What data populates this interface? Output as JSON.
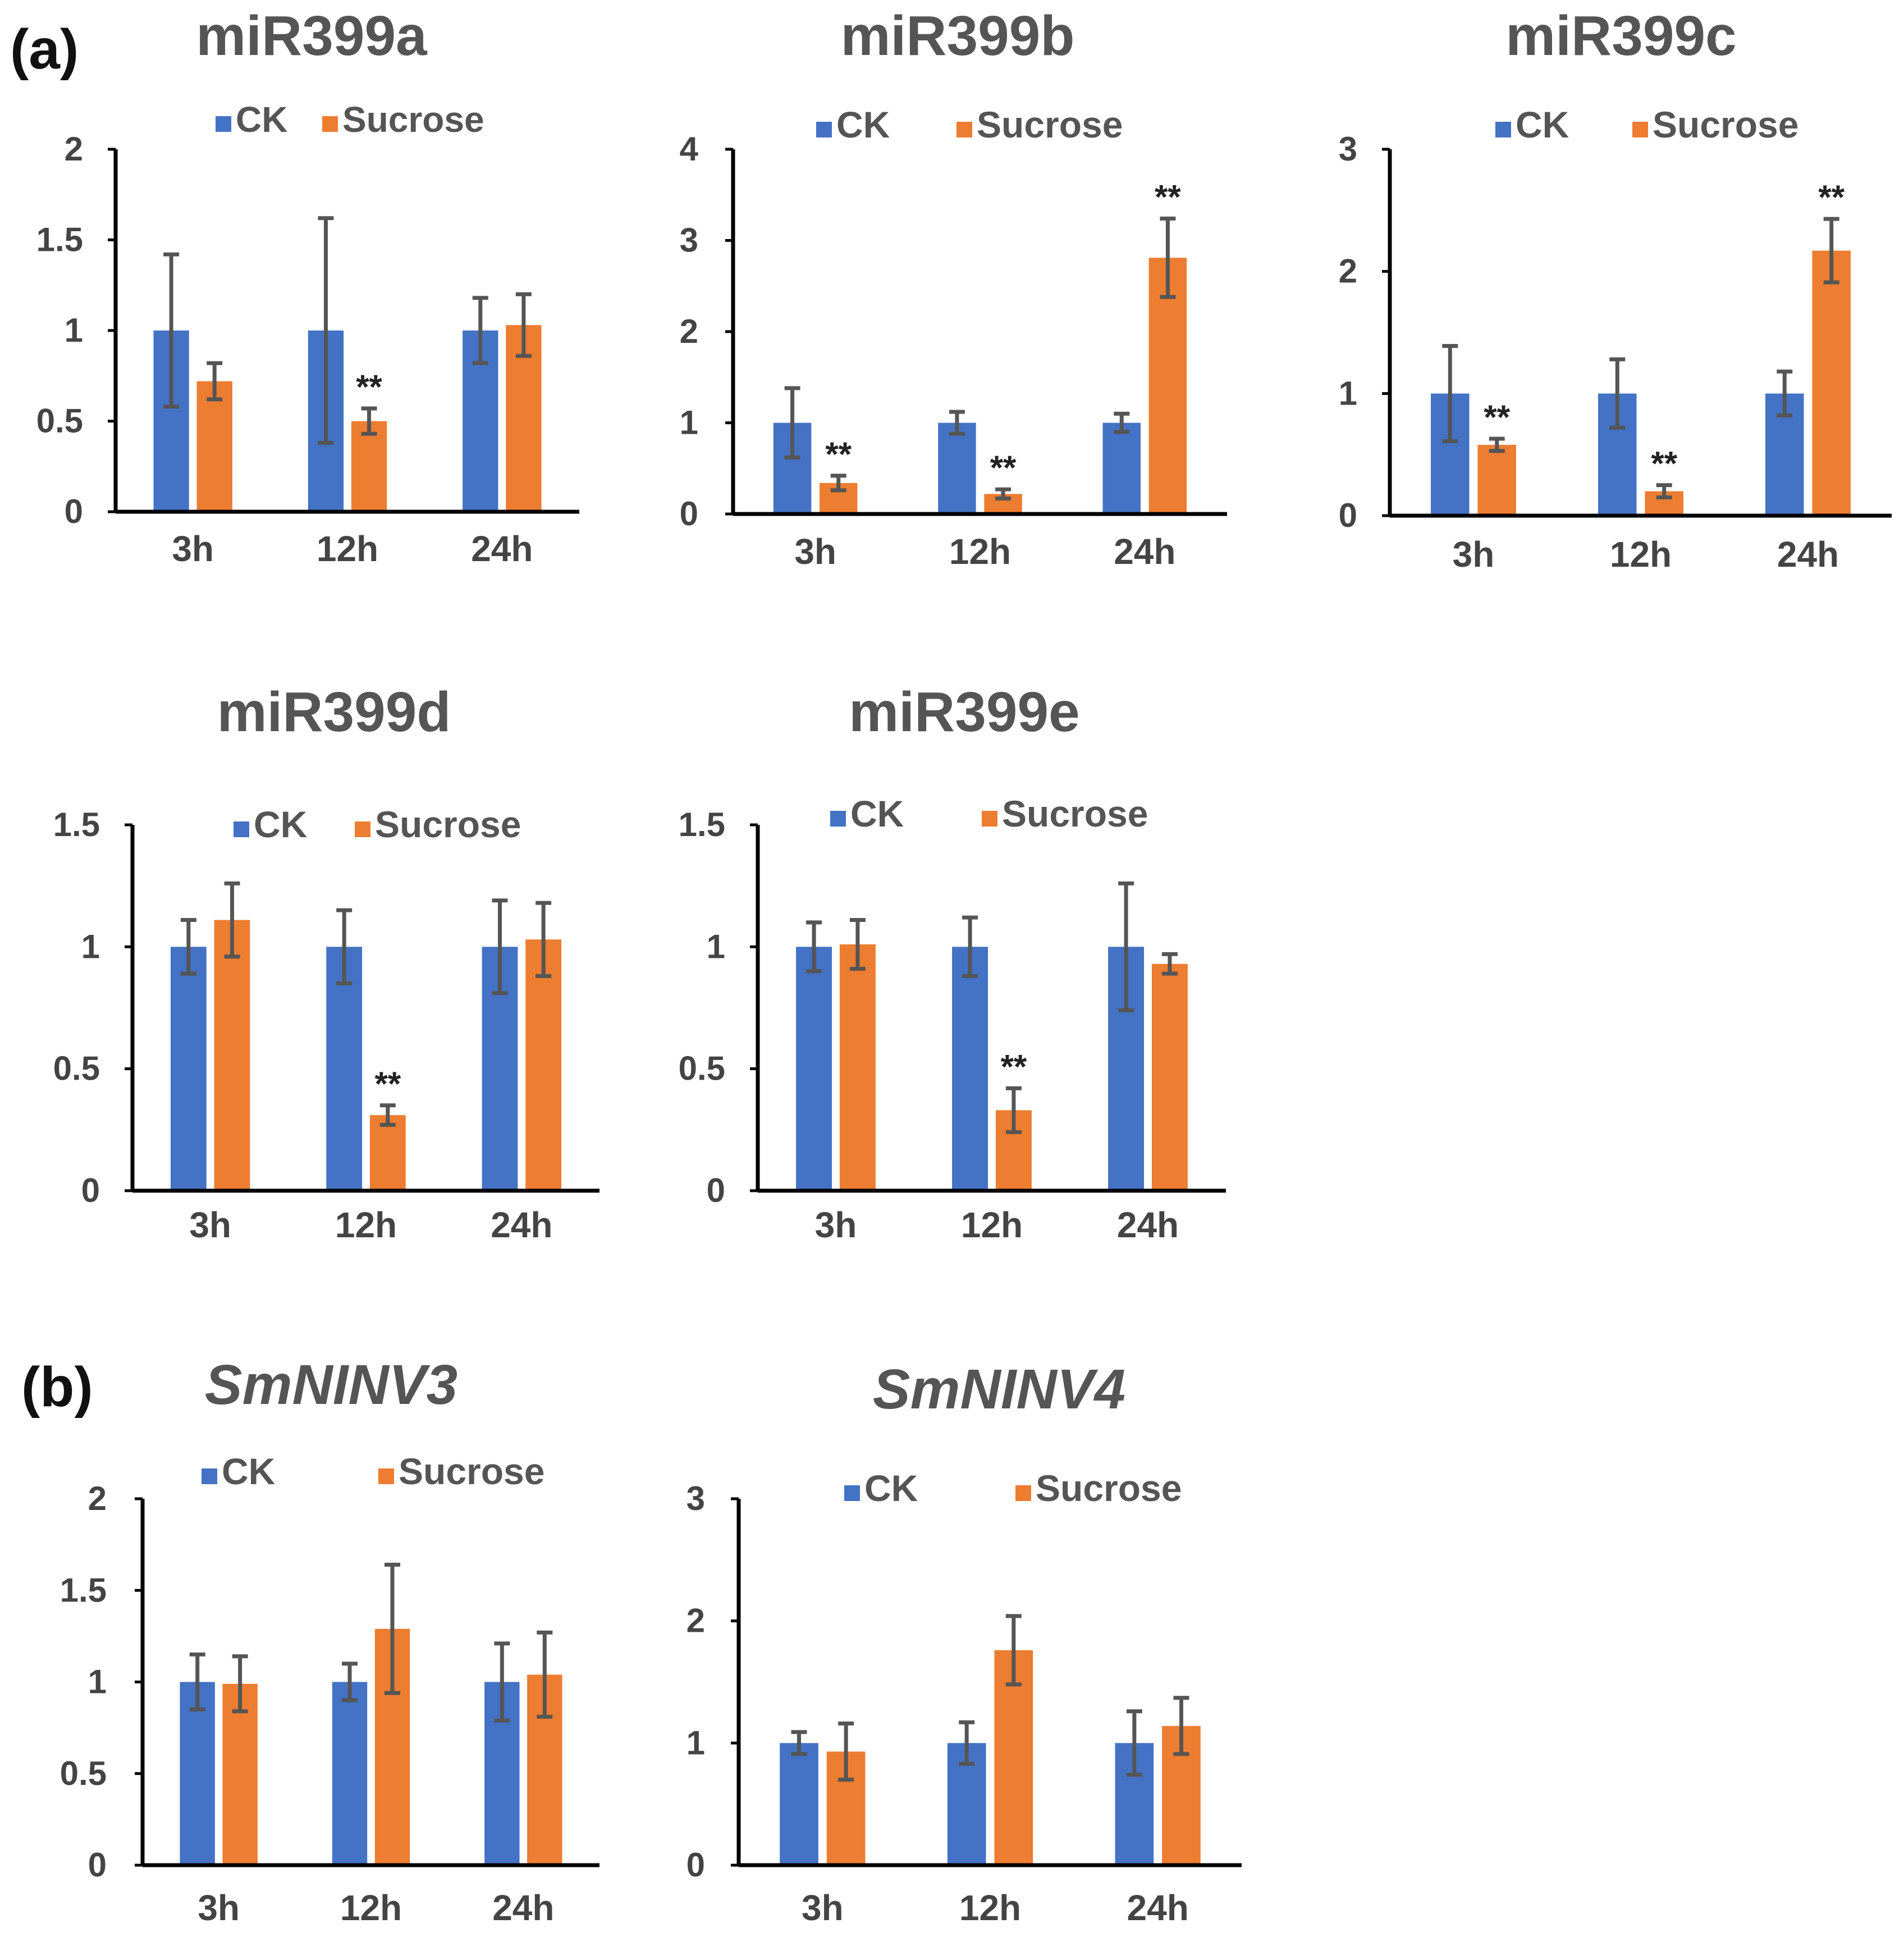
{
  "figure": {
    "panel_labels": [
      "(a)",
      "(b)"
    ],
    "colors": {
      "ck": "#4472C4",
      "sucrose": "#ED7D31",
      "axis": "#000000",
      "error": "#555555"
    }
  },
  "chart_data": [
    {
      "type": "bar",
      "panel": "(a)",
      "title": "miR399a",
      "title_italic": false,
      "categories": [
        "3h",
        "12h",
        "24h"
      ],
      "legend": [
        "CK",
        "Sucrose"
      ],
      "ylim": [
        0,
        2
      ],
      "yticks": [
        "0",
        "0.5",
        "1",
        "1.5",
        "2"
      ],
      "series": [
        {
          "name": "CK",
          "values": [
            1.0,
            1.0,
            1.0
          ],
          "errors": [
            0.42,
            0.62,
            0.18
          ]
        },
        {
          "name": "Sucrose",
          "values": [
            0.72,
            0.5,
            1.03
          ],
          "errors": [
            0.1,
            0.07,
            0.17
          ]
        }
      ],
      "significance": [
        {
          "series": "Sucrose",
          "category": "12h",
          "label": "**"
        }
      ]
    },
    {
      "type": "bar",
      "panel": "(a)",
      "title": "miR399b",
      "title_italic": false,
      "categories": [
        "3h",
        "12h",
        "24h"
      ],
      "legend": [
        "CK",
        "Sucrose"
      ],
      "ylim": [
        0,
        4
      ],
      "yticks": [
        "0",
        "1",
        "2",
        "3",
        "4"
      ],
      "series": [
        {
          "name": "CK",
          "values": [
            1.0,
            1.0,
            1.0
          ],
          "errors": [
            0.38,
            0.12,
            0.1
          ]
        },
        {
          "name": "Sucrose",
          "values": [
            0.34,
            0.22,
            2.81
          ],
          "errors": [
            0.08,
            0.05,
            0.43
          ]
        }
      ],
      "significance": [
        {
          "series": "Sucrose",
          "category": "3h",
          "label": "**"
        },
        {
          "series": "Sucrose",
          "category": "12h",
          "label": "**"
        },
        {
          "series": "Sucrose",
          "category": "24h",
          "label": "**"
        }
      ]
    },
    {
      "type": "bar",
      "panel": "(a)",
      "title": "miR399c",
      "title_italic": false,
      "categories": [
        "3h",
        "12h",
        "24h"
      ],
      "legend": [
        "CK",
        "Sucrose"
      ],
      "ylim": [
        0,
        3
      ],
      "yticks": [
        "0",
        "1",
        "2",
        "3"
      ],
      "series": [
        {
          "name": "CK",
          "values": [
            1.0,
            1.0,
            1.0
          ],
          "errors": [
            0.39,
            0.28,
            0.18
          ]
        },
        {
          "name": "Sucrose",
          "values": [
            0.58,
            0.2,
            2.17
          ],
          "errors": [
            0.05,
            0.05,
            0.26
          ]
        }
      ],
      "significance": [
        {
          "series": "Sucrose",
          "category": "3h",
          "label": "**"
        },
        {
          "series": "Sucrose",
          "category": "12h",
          "label": "**"
        },
        {
          "series": "Sucrose",
          "category": "24h",
          "label": "**"
        }
      ]
    },
    {
      "type": "bar",
      "panel": "(a)",
      "title": "miR399d",
      "title_italic": false,
      "categories": [
        "3h",
        "12h",
        "24h"
      ],
      "legend": [
        "CK",
        "Sucrose"
      ],
      "ylim": [
        0,
        1.5
      ],
      "yticks": [
        "0",
        "0.5",
        "1",
        "1.5"
      ],
      "series": [
        {
          "name": "CK",
          "values": [
            1.0,
            1.0,
            1.0
          ],
          "errors": [
            0.11,
            0.15,
            0.19
          ]
        },
        {
          "name": "Sucrose",
          "values": [
            1.11,
            0.31,
            1.03
          ],
          "errors": [
            0.15,
            0.04,
            0.15
          ]
        }
      ],
      "significance": [
        {
          "series": "Sucrose",
          "category": "12h",
          "label": "**"
        }
      ]
    },
    {
      "type": "bar",
      "panel": "(a)",
      "title": "miR399e",
      "title_italic": false,
      "categories": [
        "3h",
        "12h",
        "24h"
      ],
      "legend": [
        "CK",
        "Sucrose"
      ],
      "ylim": [
        0,
        1.5
      ],
      "yticks": [
        "0",
        "0.5",
        "1",
        "1.5"
      ],
      "series": [
        {
          "name": "CK",
          "values": [
            1.0,
            1.0,
            1.0
          ],
          "errors": [
            0.1,
            0.12,
            0.26
          ]
        },
        {
          "name": "Sucrose",
          "values": [
            1.01,
            0.33,
            0.93
          ],
          "errors": [
            0.1,
            0.09,
            0.04
          ]
        }
      ],
      "significance": [
        {
          "series": "Sucrose",
          "category": "12h",
          "label": "**"
        }
      ]
    },
    {
      "type": "bar",
      "panel": "(b)",
      "title": "SmNINV3",
      "title_italic": true,
      "categories": [
        "3h",
        "12h",
        "24h"
      ],
      "legend": [
        "CK",
        "Sucrose"
      ],
      "ylim": [
        0,
        2
      ],
      "yticks": [
        "0",
        "0.5",
        "1",
        "1.5",
        "2"
      ],
      "series": [
        {
          "name": "CK",
          "values": [
            1.0,
            1.0,
            1.0
          ],
          "errors": [
            0.15,
            0.1,
            0.21
          ]
        },
        {
          "name": "Sucrose",
          "values": [
            0.99,
            1.29,
            1.04
          ],
          "errors": [
            0.15,
            0.35,
            0.23
          ]
        }
      ],
      "significance": []
    },
    {
      "type": "bar",
      "panel": "(b)",
      "title": "SmNINV4",
      "title_italic": true,
      "categories": [
        "3h",
        "12h",
        "24h"
      ],
      "legend": [
        "CK",
        "Sucrose"
      ],
      "ylim": [
        0,
        3
      ],
      "yticks": [
        "0",
        "1",
        "2",
        "3"
      ],
      "series": [
        {
          "name": "CK",
          "values": [
            1.0,
            1.0,
            1.0
          ],
          "errors": [
            0.09,
            0.17,
            0.26
          ]
        },
        {
          "name": "Sucrose",
          "values": [
            0.93,
            1.76,
            1.14
          ],
          "errors": [
            0.23,
            0.28,
            0.23
          ]
        }
      ],
      "significance": []
    }
  ]
}
